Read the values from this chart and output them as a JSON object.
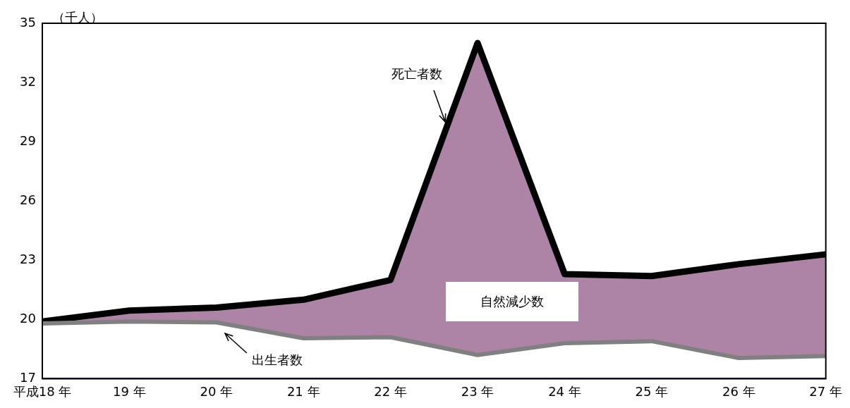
{
  "chart_data": {
    "type": "line",
    "ylabel": "（千人）",
    "categories": [
      "平成18 年",
      "19 年",
      "20 年",
      "21 年",
      "22 年",
      "23 年",
      "24 年",
      "25 年",
      "26 年",
      "27 年"
    ],
    "series": [
      {
        "name": "出生者数",
        "color": "#808080",
        "values": [
          19.8,
          19.9,
          19.85,
          19.05,
          19.1,
          18.2,
          18.8,
          18.9,
          18.05,
          18.15
        ]
      },
      {
        "name": "死亡者数",
        "type": "area",
        "color": "#000000",
        "values": [
          19.9,
          20.45,
          20.6,
          21.0,
          22.0,
          34.0,
          22.3,
          22.2,
          22.8,
          23.3
        ]
      }
    ],
    "annotations": [
      "自然減少数"
    ],
    "ylim": [
      17,
      35
    ],
    "yticks": [
      17,
      20,
      23,
      26,
      29,
      32,
      35
    ],
    "grid": false,
    "legend": false,
    "marker": "none",
    "line_style": "solid"
  }
}
